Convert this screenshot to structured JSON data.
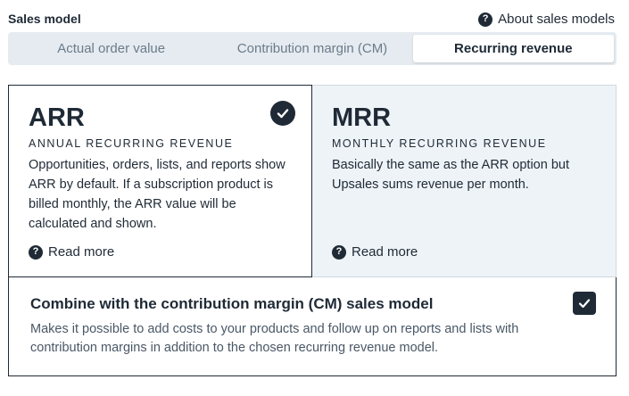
{
  "header": {
    "title": "Sales model",
    "about_label": "About sales models",
    "help_glyph": "?"
  },
  "tabs": [
    {
      "label": "Actual order value",
      "active": false
    },
    {
      "label": "Contribution margin (CM)",
      "active": false
    },
    {
      "label": "Recurring revenue",
      "active": true
    }
  ],
  "options": [
    {
      "title": "ARR",
      "subtitle": "ANNUAL RECURRING REVENUE",
      "description": "Opportunities, orders, lists, and reports show ARR by default. If a subscription product is billed monthly, the ARR value will be calculated and shown.",
      "read_more": "Read more",
      "selected": true
    },
    {
      "title": "MRR",
      "subtitle": "MONTHLY RECURRING REVENUE",
      "description": "Basically the same as the ARR option but Upsales sums revenue per month.",
      "read_more": "Read more",
      "selected": false
    }
  ],
  "combine": {
    "title": "Combine with the contribution margin (CM) sales model",
    "description": "Makes it possible to add costs to your products and follow up on reports and lists with contribution margins in addition to the chosen recurring revenue model.",
    "checked": true
  },
  "colors": {
    "primary": "#1f2a36",
    "tab_bg": "#e5ebf0",
    "unselected_card_bg": "#eef3f7",
    "muted_text": "#6b7b8a"
  },
  "icons": {
    "help": "question-circle-icon",
    "check": "check-circle-icon",
    "checkbox": "checkbox-checked-icon"
  }
}
